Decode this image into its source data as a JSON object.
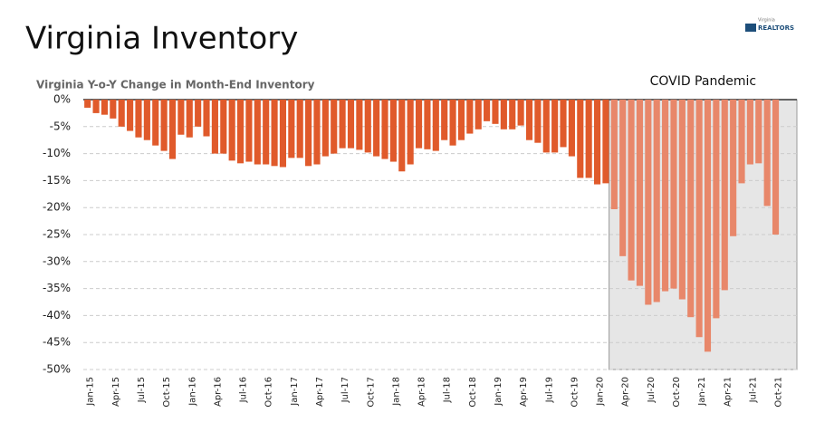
{
  "header": {
    "title": "Virginia Inventory",
    "logo_top": "Virginia",
    "logo_main": "REALTORS"
  },
  "chart_data": {
    "type": "bar",
    "title": "Virginia Y-o-Y Change in Month-End Inventory",
    "categories": [
      "Jan-15",
      null,
      null,
      "Apr-15",
      null,
      null,
      "Jul-15",
      null,
      null,
      "Oct-15",
      null,
      null,
      "Jan-16",
      null,
      null,
      "Apr-16",
      null,
      null,
      "Jul-16",
      null,
      null,
      "Oct-16",
      null,
      null,
      "Jan-17",
      null,
      null,
      "Apr-17",
      null,
      null,
      "Jul-17",
      null,
      null,
      "Oct-17",
      null,
      null,
      "Jan-18",
      null,
      null,
      "Apr-18",
      null,
      null,
      "Jul-18",
      null,
      null,
      "Oct-18",
      null,
      null,
      "Jan-19",
      null,
      null,
      "Apr-19",
      null,
      null,
      "Jul-19",
      null,
      null,
      "Oct-19",
      null,
      null,
      "Jan-20",
      null,
      null,
      "Apr-20",
      null,
      null,
      "Jul-20",
      null,
      null,
      "Oct-20",
      null,
      null,
      "Jan-21",
      null,
      null,
      "Apr-21",
      null,
      null,
      "Jul-21",
      null,
      null,
      "Oct-21",
      null,
      null
    ],
    "values": [
      -1.5,
      -2.5,
      -2.8,
      -3.5,
      -5,
      -5.8,
      -7,
      -7.5,
      -8.5,
      -9.5,
      -11,
      -6.5,
      -7,
      -5,
      -6.8,
      -10,
      -10,
      -11.3,
      -11.8,
      -11.5,
      -12,
      -12,
      -12.3,
      -12.5,
      -10.8,
      -10.8,
      -12.3,
      -12,
      -10.5,
      -10,
      -9,
      -9,
      -9.3,
      -9.8,
      -10.5,
      -11,
      -11.5,
      -13.3,
      -12,
      -9,
      -9.2,
      -9.5,
      -7.5,
      -8.5,
      -7.5,
      -6.3,
      -5.5,
      -4,
      -4.5,
      -5.5,
      -5.5,
      -4.8,
      -7.5,
      -8,
      -9.8,
      -9.8,
      -8.8,
      -10.5,
      -14.5,
      -14.5,
      -15.7,
      -15.5,
      -20.3,
      -29,
      -33.5,
      -34.5,
      -38,
      -37.5,
      -35.5,
      -35,
      -37,
      -40.3,
      -44,
      -46.7,
      -40.5,
      -35.3,
      -25.3,
      -15.5,
      -12,
      -11.8,
      -19.7,
      -25,
      null,
      null
    ],
    "color": "#e05a2b",
    "highlight": {
      "label": "COVID Pandemic",
      "from_index": 62,
      "color": "#e8876a"
    },
    "ylim": [
      -50,
      0
    ],
    "yticks": [
      {
        "value": 0,
        "label": "0%"
      },
      {
        "value": -5,
        "label": "-5%"
      },
      {
        "value": -10,
        "label": "-10%"
      },
      {
        "value": -15,
        "label": "-15%"
      },
      {
        "value": -20,
        "label": "-20%"
      },
      {
        "value": -25,
        "label": "-25%"
      },
      {
        "value": -30,
        "label": "-30%"
      },
      {
        "value": -35,
        "label": "-35%"
      },
      {
        "value": -40,
        "label": "-40%"
      },
      {
        "value": -45,
        "label": "-45%"
      },
      {
        "value": -50,
        "label": "-50%"
      }
    ],
    "grid": true
  }
}
